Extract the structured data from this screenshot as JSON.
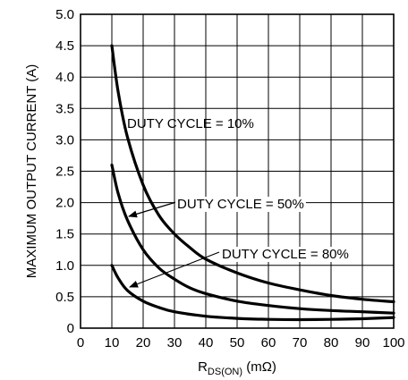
{
  "chart_data": {
    "type": "line",
    "xlabel_main": "R",
    "xlabel_sub": "DS(ON)",
    "xlabel_unit": " (mΩ)",
    "ylabel": "MAXIMUM OUTPUT CURRENT (A)",
    "xlim": [
      0,
      100
    ],
    "ylim": [
      0,
      5.0
    ],
    "x_ticks": [
      "0",
      "10",
      "20",
      "30",
      "40",
      "50",
      "60",
      "70",
      "80",
      "90",
      "100"
    ],
    "y_ticks": [
      "0",
      "0.5",
      "1.0",
      "1.5",
      "2.0",
      "2.5",
      "3.0",
      "3.5",
      "4.0",
      "4.5",
      "5.0"
    ],
    "grid": true,
    "series": [
      {
        "name": "DUTY CYCLE = 10%",
        "x": [
          10,
          12,
          15,
          20,
          25,
          30,
          35,
          40,
          50,
          60,
          70,
          80,
          90,
          100
        ],
        "y": [
          4.5,
          3.77,
          3.04,
          2.28,
          1.8,
          1.5,
          1.28,
          1.1,
          0.88,
          0.72,
          0.61,
          0.52,
          0.46,
          0.42
        ]
      },
      {
        "name": "DUTY CYCLE = 50%",
        "x": [
          10,
          12,
          15,
          20,
          25,
          30,
          35,
          40,
          50,
          60,
          70,
          80,
          90,
          100
        ],
        "y": [
          2.6,
          2.15,
          1.72,
          1.25,
          0.96,
          0.78,
          0.64,
          0.55,
          0.43,
          0.36,
          0.31,
          0.28,
          0.26,
          0.24
        ]
      },
      {
        "name": "DUTY CYCLE = 80%",
        "x": [
          10,
          12,
          15,
          20,
          25,
          30,
          40,
          50,
          60,
          70,
          80,
          90,
          100
        ],
        "y": [
          1.0,
          0.8,
          0.6,
          0.43,
          0.33,
          0.26,
          0.19,
          0.155,
          0.14,
          0.135,
          0.14,
          0.15,
          0.17
        ]
      }
    ],
    "annotations": [
      {
        "text": "DUTY CYCLE = 10%",
        "series": 0
      },
      {
        "text": "DUTY CYCLE = 50%",
        "series": 1
      },
      {
        "text": "DUTY CYCLE = 80%",
        "series": 2
      }
    ]
  }
}
